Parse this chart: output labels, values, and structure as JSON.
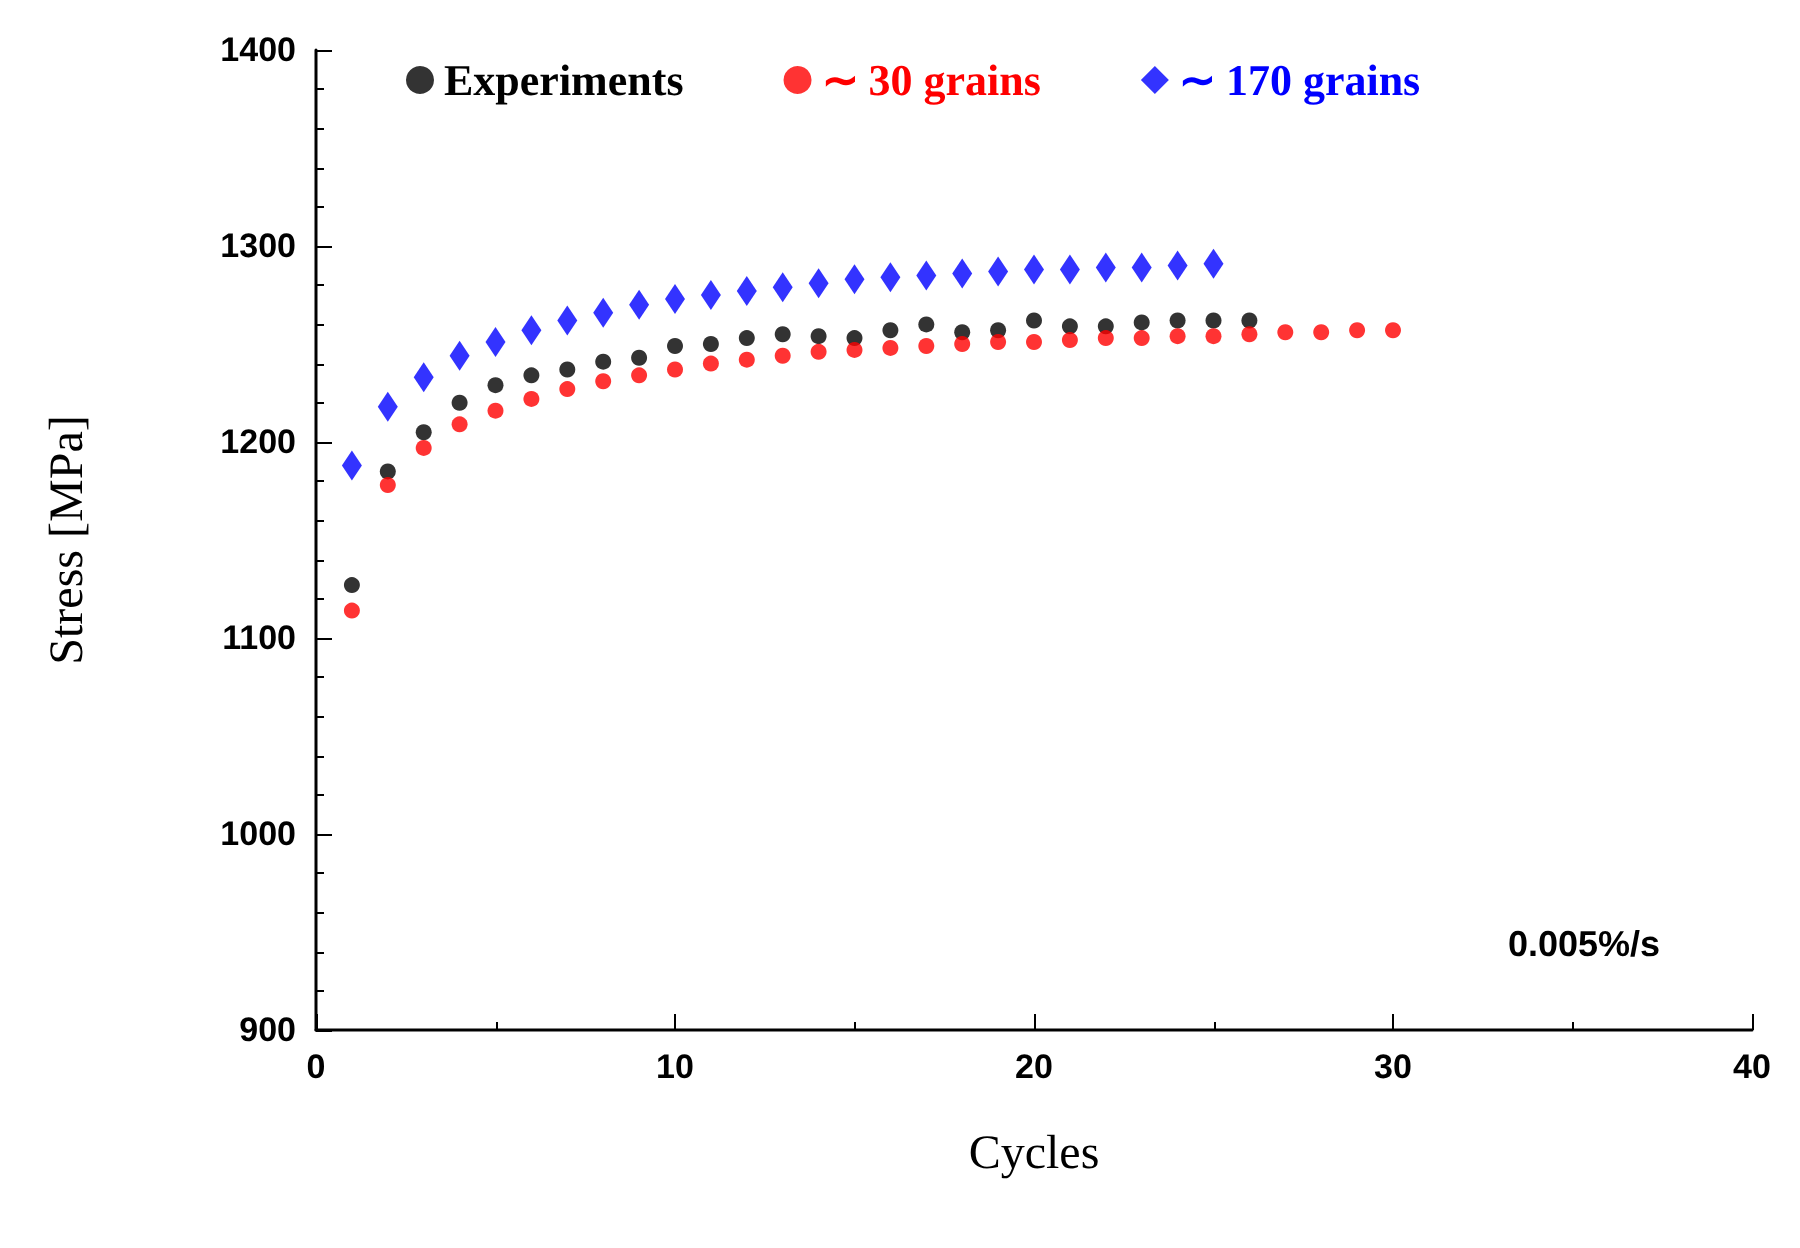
{
  "chart_data": {
    "type": "scatter",
    "xlabel": "Cycles",
    "ylabel": "Stress [MPa]",
    "xlim": [
      0,
      40
    ],
    "xticks": [
      0,
      10,
      20,
      30,
      40
    ],
    "ylim": [
      900,
      1400
    ],
    "yticks": [
      900,
      1000,
      1100,
      1200,
      1300,
      1400
    ],
    "grid": false,
    "legend": "top",
    "annotations": [
      "0.005%/s"
    ],
    "series": [
      {
        "name": "Experiments",
        "color": "#000000",
        "marker": "circle",
        "x": [
          1,
          2,
          3,
          4,
          5,
          6,
          7,
          8,
          9,
          10,
          11,
          12,
          13,
          14,
          15,
          16,
          17,
          18,
          19,
          20,
          21,
          22,
          23,
          24,
          25,
          26
        ],
        "values": [
          1127,
          1185,
          1205,
          1220,
          1229,
          1234,
          1237,
          1241,
          1243,
          1249,
          1250,
          1253,
          1255,
          1254,
          1253,
          1257,
          1260,
          1256,
          1257,
          1262,
          1259,
          1259,
          1261,
          1262,
          1262,
          1262
        ]
      },
      {
        "name": "∼ 30 grains",
        "color": "#ff0000",
        "marker": "circle",
        "x": [
          1,
          2,
          3,
          4,
          5,
          6,
          7,
          8,
          9,
          10,
          11,
          12,
          13,
          14,
          15,
          16,
          17,
          18,
          19,
          20,
          21,
          22,
          23,
          24,
          25,
          26,
          27,
          28,
          29,
          30
        ],
        "values": [
          1114,
          1178,
          1197,
          1209,
          1216,
          1222,
          1227,
          1231,
          1234,
          1237,
          1240,
          1242,
          1244,
          1246,
          1247,
          1248,
          1249,
          1250,
          1251,
          1251,
          1252,
          1253,
          1253,
          1254,
          1254,
          1255,
          1256,
          1256,
          1257,
          1257
        ]
      },
      {
        "name": "∼ 170 grains",
        "color": "#0000ff",
        "marker": "diamond",
        "x": [
          1,
          2,
          3,
          4,
          5,
          6,
          7,
          8,
          9,
          10,
          11,
          12,
          13,
          14,
          15,
          16,
          17,
          18,
          19,
          20,
          21,
          22,
          23,
          24,
          25
        ],
        "values": [
          1188,
          1218,
          1233,
          1244,
          1251,
          1257,
          1262,
          1266,
          1270,
          1273,
          1275,
          1277,
          1279,
          1281,
          1283,
          1284,
          1285,
          1286,
          1287,
          1288,
          1288,
          1289,
          1289,
          1290,
          1291
        ]
      }
    ]
  }
}
